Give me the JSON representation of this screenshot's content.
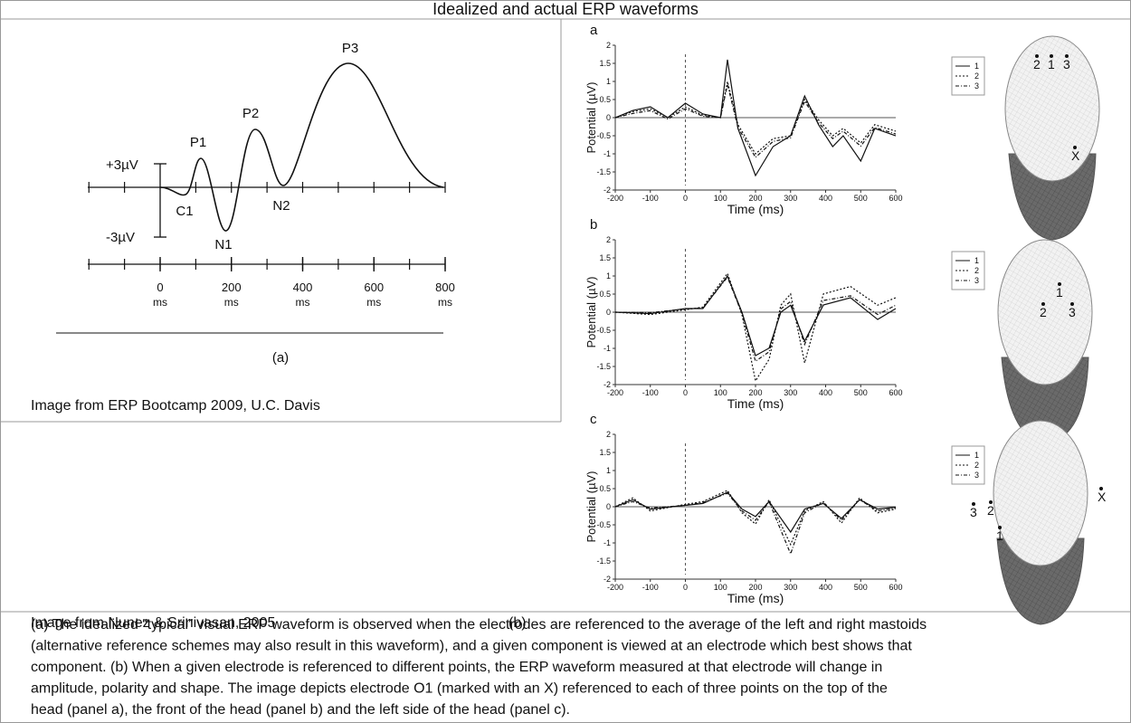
{
  "title": "Idealized and actual ERP waveforms",
  "left_figure": {
    "amplitude_labels": [
      "+3µV",
      "-3µV"
    ],
    "peaks": [
      "P3",
      "P2",
      "P1",
      "C1",
      "N1",
      "N2"
    ],
    "time_ticks": [
      0,
      200,
      400,
      600,
      800
    ],
    "time_unit": "ms",
    "caption": "(a)",
    "credit": "Image from ERP Bootcamp 2009, U.C. Davis"
  },
  "right_figure": {
    "credit": "Image from Nunez & Srinivasan, 2005",
    "caption": "(b)",
    "xlabel": "Time (ms)",
    "ylabel": "Potential (µV)",
    "xlim": [
      -200,
      600
    ],
    "xticks": [
      -200,
      -100,
      0,
      100,
      200,
      300,
      400,
      500,
      600
    ],
    "ylim": [
      -2,
      2
    ],
    "yticks": [
      2,
      1.5,
      1,
      0.5,
      0,
      -0.5,
      -1,
      -1.5,
      -2
    ],
    "legend": [
      "1",
      "2",
      "3"
    ],
    "panels": [
      {
        "letter": "a",
        "electrodes": [
          "2",
          "1",
          "3",
          "X"
        ]
      },
      {
        "letter": "b",
        "electrodes": [
          "1",
          "2",
          "3"
        ]
      },
      {
        "letter": "c",
        "electrodes": [
          "3",
          "2",
          "1",
          "X"
        ]
      }
    ]
  },
  "caption": [
    "(a) The idealized “typical” visual ERP waveform is observed when the electrodes are referenced to the average of the left and right mastoids",
    "(alternative reference schemes may also result in this waveform), and a given component is viewed at an electrode which best shows that",
    "component. (b) When a given electrode is referenced to different points, the ERP waveform measured at that electrode will change in",
    "amplitude, polarity and shape. The image depicts electrode O1 (marked with an X) referenced to each of three points on the top of the",
    "head (panel a), the front of the head (panel b) and the left side of the head (panel c)."
  ]
}
